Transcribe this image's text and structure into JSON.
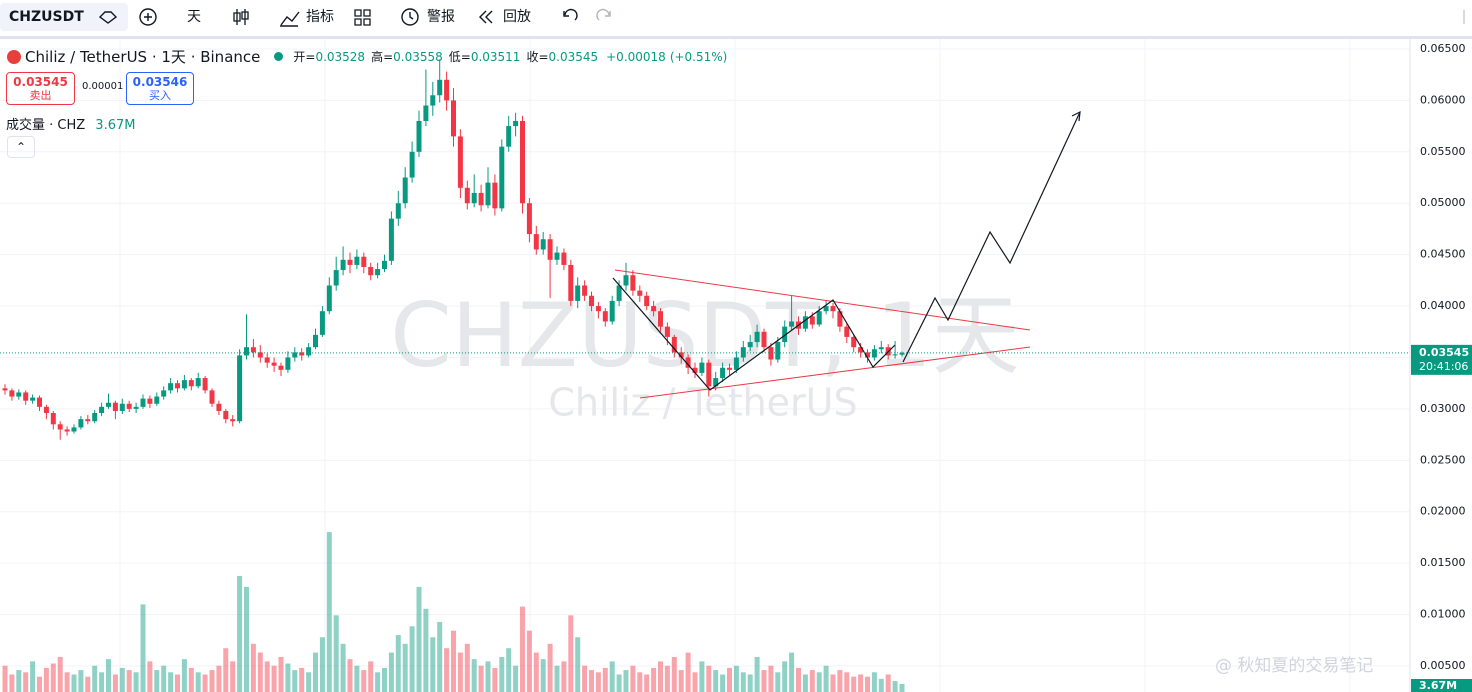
{
  "toolbar": {
    "symbol": "CHZUSDT",
    "interval": "天",
    "indicators": "指标",
    "alert": "警报",
    "replay": "回放"
  },
  "legend": {
    "title": "Chiliz / TetherUS · 1天 · Binance",
    "ohlc": [
      {
        "label": "开=",
        "value": 0.03528
      },
      {
        "label": "高=",
        "value": 0.03558
      },
      {
        "label": "低=",
        "value": 0.03511
      },
      {
        "label": "收=",
        "value": 0.03545
      }
    ],
    "change": "+0.00018",
    "change_pct": "(+0.51%)",
    "sell_price": 0.03545,
    "sell_label": "卖出",
    "spread": 1e-05,
    "buy_price": 0.03546,
    "buy_label": "买入",
    "volume_title": "成交量 · CHZ",
    "volume_value": "3.67M"
  },
  "watermark": {
    "main": "CHZUSDT, 1天",
    "sub": "Chiliz / TetherUS"
  },
  "credit": "@ 秋知夏的交易笔记",
  "price_label": {
    "price": 0.03545,
    "countdown": "20:41:06",
    "volume": "3.67M"
  },
  "chart_data": {
    "type": "candlestick",
    "up_color": "#089981",
    "down_color": "#f23645",
    "ylim": [
      0.00247,
      0.06597
    ],
    "yticks": [
      {
        "value": 0.065,
        "label": "0.06500"
      },
      {
        "value": 0.06,
        "label": "0.06000"
      },
      {
        "value": 0.055,
        "label": "0.05500"
      },
      {
        "value": 0.05,
        "label": "0.05000"
      },
      {
        "value": 0.045,
        "label": "0.04500"
      },
      {
        "value": 0.04,
        "label": "0.04000"
      },
      {
        "value": 0.035,
        "label": "0.03500"
      },
      {
        "value": 0.03,
        "label": "0.03000"
      },
      {
        "value": 0.025,
        "label": "0.02500"
      },
      {
        "value": 0.02,
        "label": "0.02000"
      },
      {
        "value": 0.015,
        "label": "0.01500"
      },
      {
        "value": 0.01,
        "label": "0.01000"
      },
      {
        "value": 0.005,
        "label": "0.00500"
      }
    ],
    "candles": [
      [
        0.032,
        0.0324,
        0.0314,
        0.0318
      ],
      [
        0.0318,
        0.032,
        0.0308,
        0.0312
      ],
      [
        0.0312,
        0.0319,
        0.0309,
        0.0316
      ],
      [
        0.0316,
        0.0318,
        0.0304,
        0.0308
      ],
      [
        0.0308,
        0.0314,
        0.0305,
        0.0311
      ],
      [
        0.0311,
        0.0313,
        0.0298,
        0.0302
      ],
      [
        0.0302,
        0.0304,
        0.029,
        0.0296
      ],
      [
        0.0296,
        0.0298,
        0.028,
        0.0285
      ],
      [
        0.0285,
        0.0288,
        0.027,
        0.028
      ],
      [
        0.028,
        0.0283,
        0.0274,
        0.0278
      ],
      [
        0.0278,
        0.0285,
        0.0276,
        0.0282
      ],
      [
        0.0282,
        0.0293,
        0.028,
        0.029
      ],
      [
        0.029,
        0.0294,
        0.0285,
        0.0288
      ],
      [
        0.0288,
        0.0299,
        0.0286,
        0.0296
      ],
      [
        0.0296,
        0.0306,
        0.0293,
        0.0302
      ],
      [
        0.0302,
        0.0315,
        0.03,
        0.0306
      ],
      [
        0.0306,
        0.0308,
        0.029,
        0.0298
      ],
      [
        0.0298,
        0.031,
        0.0295,
        0.0305
      ],
      [
        0.0305,
        0.0308,
        0.0297,
        0.03
      ],
      [
        0.03,
        0.0306,
        0.0296,
        0.0302
      ],
      [
        0.0302,
        0.0314,
        0.03,
        0.031
      ],
      [
        0.031,
        0.0313,
        0.0301,
        0.0305
      ],
      [
        0.0305,
        0.0316,
        0.0303,
        0.0312
      ],
      [
        0.0312,
        0.0322,
        0.0309,
        0.0318
      ],
      [
        0.0318,
        0.033,
        0.0315,
        0.0325
      ],
      [
        0.0325,
        0.0328,
        0.0316,
        0.032
      ],
      [
        0.032,
        0.0333,
        0.0318,
        0.0328
      ],
      [
        0.0328,
        0.033,
        0.0318,
        0.0322
      ],
      [
        0.0322,
        0.0335,
        0.032,
        0.033
      ],
      [
        0.033,
        0.0332,
        0.0315,
        0.0318
      ],
      [
        0.0318,
        0.032,
        0.0302,
        0.0305
      ],
      [
        0.0305,
        0.0308,
        0.0294,
        0.0298
      ],
      [
        0.0298,
        0.03,
        0.0286,
        0.029
      ],
      [
        0.029,
        0.0294,
        0.0283,
        0.0288
      ],
      [
        0.0288,
        0.0358,
        0.0286,
        0.0352
      ],
      [
        0.0352,
        0.0392,
        0.0348,
        0.036
      ],
      [
        0.036,
        0.0368,
        0.035,
        0.0355
      ],
      [
        0.0355,
        0.0362,
        0.0345,
        0.035
      ],
      [
        0.035,
        0.0354,
        0.034,
        0.0345
      ],
      [
        0.0345,
        0.035,
        0.0336,
        0.0342
      ],
      [
        0.0342,
        0.0345,
        0.0332,
        0.0338
      ],
      [
        0.0338,
        0.0356,
        0.0335,
        0.035
      ],
      [
        0.035,
        0.036,
        0.0346,
        0.0355
      ],
      [
        0.0355,
        0.0359,
        0.0347,
        0.0352
      ],
      [
        0.0352,
        0.0364,
        0.035,
        0.036
      ],
      [
        0.036,
        0.0378,
        0.0358,
        0.0372
      ],
      [
        0.0372,
        0.04,
        0.037,
        0.0395
      ],
      [
        0.0395,
        0.0428,
        0.0392,
        0.042
      ],
      [
        0.042,
        0.0448,
        0.0415,
        0.0435
      ],
      [
        0.0435,
        0.0458,
        0.043,
        0.0445
      ],
      [
        0.0445,
        0.0452,
        0.0432,
        0.044
      ],
      [
        0.044,
        0.0455,
        0.0436,
        0.0448
      ],
      [
        0.0448,
        0.0452,
        0.0432,
        0.0438
      ],
      [
        0.0438,
        0.0442,
        0.0425,
        0.043
      ],
      [
        0.043,
        0.0442,
        0.0427,
        0.0436
      ],
      [
        0.0436,
        0.045,
        0.0433,
        0.0444
      ],
      [
        0.0444,
        0.0492,
        0.044,
        0.0485
      ],
      [
        0.0485,
        0.0512,
        0.0478,
        0.05
      ],
      [
        0.05,
        0.0535,
        0.0495,
        0.0525
      ],
      [
        0.0525,
        0.056,
        0.052,
        0.055
      ],
      [
        0.055,
        0.059,
        0.0545,
        0.058
      ],
      [
        0.058,
        0.063,
        0.0575,
        0.0595
      ],
      [
        0.0595,
        0.0618,
        0.0585,
        0.0605
      ],
      [
        0.0605,
        0.064,
        0.0598,
        0.062
      ],
      [
        0.062,
        0.0628,
        0.059,
        0.06
      ],
      [
        0.06,
        0.0612,
        0.0555,
        0.0565
      ],
      [
        0.0565,
        0.0572,
        0.0505,
        0.0515
      ],
      [
        0.0515,
        0.0522,
        0.0494,
        0.05
      ],
      [
        0.05,
        0.0528,
        0.0496,
        0.051
      ],
      [
        0.051,
        0.0518,
        0.0492,
        0.0498
      ],
      [
        0.0498,
        0.0535,
        0.0495,
        0.052
      ],
      [
        0.052,
        0.0528,
        0.0488,
        0.0495
      ],
      [
        0.0495,
        0.0562,
        0.0492,
        0.0555
      ],
      [
        0.0555,
        0.0585,
        0.055,
        0.0575
      ],
      [
        0.0575,
        0.0588,
        0.0565,
        0.058
      ],
      [
        0.058,
        0.0585,
        0.049,
        0.05
      ],
      [
        0.05,
        0.0505,
        0.0462,
        0.047
      ],
      [
        0.047,
        0.0478,
        0.045,
        0.0455
      ],
      [
        0.0455,
        0.0472,
        0.045,
        0.0465
      ],
      [
        0.0465,
        0.047,
        0.0408,
        0.0445
      ],
      [
        0.0445,
        0.0458,
        0.044,
        0.0452
      ],
      [
        0.0452,
        0.0456,
        0.0435,
        0.044
      ],
      [
        0.044,
        0.0445,
        0.04,
        0.0405
      ],
      [
        0.0405,
        0.0428,
        0.0398,
        0.042
      ],
      [
        0.042,
        0.0425,
        0.0405,
        0.041
      ],
      [
        0.041,
        0.0414,
        0.0395,
        0.04
      ],
      [
        0.04,
        0.0404,
        0.0388,
        0.0395
      ],
      [
        0.0395,
        0.0398,
        0.038,
        0.0385
      ],
      [
        0.0385,
        0.041,
        0.0382,
        0.0405
      ],
      [
        0.0405,
        0.0425,
        0.04,
        0.042
      ],
      [
        0.042,
        0.0442,
        0.0415,
        0.043
      ],
      [
        0.043,
        0.0435,
        0.041,
        0.0415
      ],
      [
        0.0415,
        0.042,
        0.0404,
        0.041
      ],
      [
        0.041,
        0.0414,
        0.0396,
        0.04
      ],
      [
        0.04,
        0.0405,
        0.039,
        0.0395
      ],
      [
        0.0395,
        0.0398,
        0.0375,
        0.038
      ],
      [
        0.038,
        0.0384,
        0.0362,
        0.037
      ],
      [
        0.037,
        0.0372,
        0.035,
        0.0355
      ],
      [
        0.0355,
        0.036,
        0.0344,
        0.035
      ],
      [
        0.035,
        0.0353,
        0.0334,
        0.034
      ],
      [
        0.034,
        0.0345,
        0.033,
        0.0335
      ],
      [
        0.0335,
        0.035,
        0.0332,
        0.0345
      ],
      [
        0.0345,
        0.0348,
        0.0312,
        0.0322
      ],
      [
        0.0322,
        0.0336,
        0.0318,
        0.033
      ],
      [
        0.033,
        0.0345,
        0.0326,
        0.034
      ],
      [
        0.034,
        0.0344,
        0.0333,
        0.0338
      ],
      [
        0.0338,
        0.0356,
        0.0335,
        0.035
      ],
      [
        0.035,
        0.0366,
        0.0346,
        0.036
      ],
      [
        0.036,
        0.0372,
        0.0356,
        0.0365
      ],
      [
        0.0365,
        0.0382,
        0.036,
        0.0375
      ],
      [
        0.0375,
        0.0378,
        0.0355,
        0.036
      ],
      [
        0.036,
        0.0364,
        0.0342,
        0.0348
      ],
      [
        0.0348,
        0.037,
        0.0345,
        0.0365
      ],
      [
        0.0365,
        0.0386,
        0.036,
        0.038
      ],
      [
        0.038,
        0.041,
        0.0376,
        0.0385
      ],
      [
        0.0385,
        0.039,
        0.0372,
        0.0378
      ],
      [
        0.0378,
        0.0395,
        0.0375,
        0.039
      ],
      [
        0.039,
        0.0394,
        0.0378,
        0.0382
      ],
      [
        0.0382,
        0.04,
        0.038,
        0.0395
      ],
      [
        0.0395,
        0.0405,
        0.0392,
        0.04
      ],
      [
        0.04,
        0.0403,
        0.0388,
        0.0395
      ],
      [
        0.0395,
        0.0398,
        0.0375,
        0.038
      ],
      [
        0.038,
        0.0383,
        0.0364,
        0.037
      ],
      [
        0.037,
        0.0372,
        0.0355,
        0.036
      ],
      [
        0.036,
        0.0364,
        0.035,
        0.0355
      ],
      [
        0.0355,
        0.0358,
        0.0345,
        0.035
      ],
      [
        0.035,
        0.0362,
        0.0347,
        0.0358
      ],
      [
        0.0358,
        0.0366,
        0.0354,
        0.036
      ],
      [
        0.036,
        0.0363,
        0.0348,
        0.0352
      ],
      [
        0.0352,
        0.0366,
        0.0349,
        0.0353
      ],
      [
        0.03528,
        0.03558,
        0.03511,
        0.03545
      ]
    ],
    "volumes": [
      12,
      8,
      10,
      9,
      14,
      7,
      11,
      13,
      16,
      9,
      8,
      10,
      7,
      12,
      9,
      15,
      8,
      11,
      10,
      9,
      40,
      14,
      10,
      12,
      9,
      8,
      15,
      11,
      9,
      8,
      10,
      12,
      20,
      14,
      53,
      48,
      22,
      18,
      14,
      12,
      16,
      13,
      10,
      11,
      9,
      18,
      25,
      73,
      35,
      22,
      15,
      12,
      10,
      14,
      9,
      11,
      18,
      26,
      22,
      30,
      48,
      38,
      25,
      32,
      20,
      28,
      18,
      22,
      15,
      12,
      14,
      11,
      16,
      20,
      12,
      39,
      28,
      18,
      15,
      22,
      12,
      14,
      35,
      25,
      12,
      10,
      9,
      11,
      14,
      8,
      10,
      12,
      9,
      8,
      11,
      14,
      12,
      16,
      10,
      18,
      9,
      14,
      12,
      10,
      8,
      11,
      12,
      9,
      8,
      16,
      10,
      12,
      9,
      14,
      18,
      11,
      8,
      10,
      9,
      12,
      8,
      10,
      9,
      7,
      8,
      7,
      9,
      6,
      8,
      5,
      3.67
    ]
  }
}
